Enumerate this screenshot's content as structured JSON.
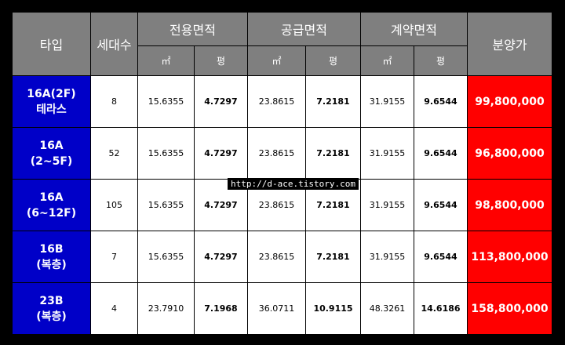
{
  "header": {
    "type": "타입",
    "households": "세대수",
    "exclusive_area": "전용면적",
    "supply_area": "공급면적",
    "contract_area": "계약면적",
    "price": "분양가",
    "unit_m2": "㎡",
    "unit_pyeong": "평"
  },
  "rows": [
    {
      "type_line1": "16A(2F)",
      "type_line2": "테라스",
      "households": "8",
      "excl_m2": "15.6355",
      "excl_py": "4.7297",
      "supp_m2": "23.8615",
      "supp_py": "7.2181",
      "cont_m2": "31.9155",
      "cont_py": "9.6544",
      "price": "99,800,000"
    },
    {
      "type_line1": "16A",
      "type_line2": "(2~5F)",
      "households": "52",
      "excl_m2": "15.6355",
      "excl_py": "4.7297",
      "supp_m2": "23.8615",
      "supp_py": "7.2181",
      "cont_m2": "31.9155",
      "cont_py": "9.6544",
      "price": "96,800,000"
    },
    {
      "type_line1": "16A",
      "type_line2": "(6~12F)",
      "households": "105",
      "excl_m2": "15.6355",
      "excl_py": "4.7297",
      "supp_m2": "23.8615",
      "supp_py": "7.2181",
      "cont_m2": "31.9155",
      "cont_py": "9.6544",
      "price": "98,800,000"
    },
    {
      "type_line1": "16B",
      "type_line2": "(복층)",
      "households": "7",
      "excl_m2": "15.6355",
      "excl_py": "4.7297",
      "supp_m2": "23.8615",
      "supp_py": "7.2181",
      "cont_m2": "31.9155",
      "cont_py": "9.6544",
      "price": "113,800,000"
    },
    {
      "type_line1": "23B",
      "type_line2": "(복층)",
      "households": "4",
      "excl_m2": "23.7910",
      "excl_py": "7.1968",
      "supp_m2": "36.0711",
      "supp_py": "10.9115",
      "cont_m2": "48.3261",
      "cont_py": "14.6186",
      "price": "158,800,000"
    }
  ],
  "watermark": "http://d-ace.tistory.com",
  "colors": {
    "header_bg": "#7f7f7f",
    "type_bg": "#0000c8",
    "price_bg": "#ff0000"
  }
}
